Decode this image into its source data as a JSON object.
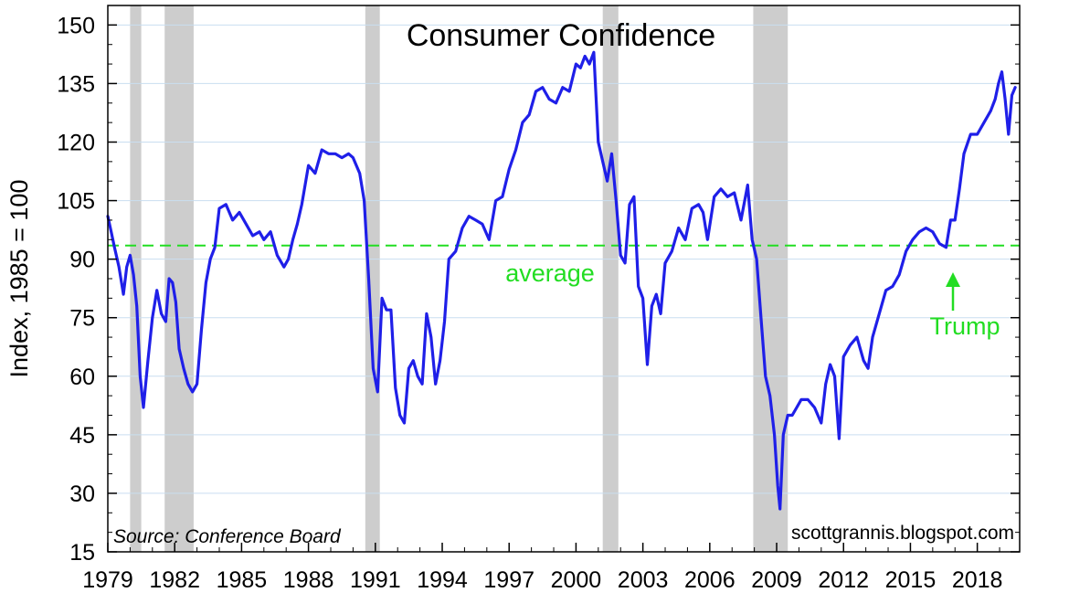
{
  "chart_data": {
    "type": "line",
    "title": "Consumer Confidence",
    "ylabel": "Index, 1985 = 100",
    "xlabel": "",
    "xlim": [
      1979,
      2019.9
    ],
    "ylim": [
      15,
      155
    ],
    "yticks": [
      15,
      30,
      45,
      60,
      75,
      90,
      105,
      120,
      135,
      150
    ],
    "xticks": [
      1979,
      1982,
      1985,
      1988,
      1991,
      1994,
      1997,
      2000,
      2003,
      2006,
      2009,
      2012,
      2015,
      2018
    ],
    "grid": true,
    "recessions": [
      {
        "start": 1980.0,
        "end": 1980.5
      },
      {
        "start": 1981.55,
        "end": 1982.85
      },
      {
        "start": 1990.55,
        "end": 1991.2
      },
      {
        "start": 2001.2,
        "end": 2001.9
      },
      {
        "start": 2007.95,
        "end": 2009.5
      }
    ],
    "average": {
      "value": 93.5,
      "label": "average"
    },
    "annotation": {
      "label": "Trump",
      "x": 2016.85,
      "arrow_y": 92
    },
    "source": "Source:  Conference Board",
    "credit": "scottgrannis.blogspot.com",
    "series": [
      {
        "name": "Consumer Confidence Index",
        "color": "#1f1fe8",
        "x": [
          1979.0,
          1979.15,
          1979.3,
          1979.5,
          1979.7,
          1979.85,
          1980.0,
          1980.15,
          1980.3,
          1980.45,
          1980.6,
          1980.8,
          1981.0,
          1981.2,
          1981.4,
          1981.6,
          1981.75,
          1981.9,
          1982.05,
          1982.2,
          1982.4,
          1982.6,
          1982.8,
          1983.0,
          1983.2,
          1983.4,
          1983.6,
          1983.8,
          1984.0,
          1984.3,
          1984.6,
          1984.9,
          1985.2,
          1985.5,
          1985.8,
          1986.0,
          1986.3,
          1986.6,
          1986.9,
          1987.1,
          1987.3,
          1987.5,
          1987.7,
          1988.0,
          1988.3,
          1988.6,
          1988.9,
          1989.2,
          1989.5,
          1989.8,
          1990.0,
          1990.3,
          1990.5,
          1990.7,
          1990.9,
          1991.1,
          1991.3,
          1991.5,
          1991.7,
          1991.9,
          1992.1,
          1992.3,
          1992.5,
          1992.7,
          1992.9,
          1993.1,
          1993.3,
          1993.5,
          1993.7,
          1993.9,
          1994.1,
          1994.3,
          1994.6,
          1994.9,
          1995.2,
          1995.5,
          1995.8,
          1996.1,
          1996.4,
          1996.7,
          1997.0,
          1997.3,
          1997.6,
          1997.9,
          1998.2,
          1998.5,
          1998.8,
          1999.1,
          1999.4,
          1999.7,
          2000.0,
          2000.2,
          2000.4,
          2000.6,
          2000.8,
          2001.0,
          2001.2,
          2001.4,
          2001.6,
          2001.8,
          2002.0,
          2002.2,
          2002.4,
          2002.6,
          2002.8,
          2003.0,
          2003.2,
          2003.4,
          2003.6,
          2003.8,
          2004.0,
          2004.3,
          2004.6,
          2004.9,
          2005.2,
          2005.5,
          2005.7,
          2005.9,
          2006.2,
          2006.5,
          2006.8,
          2007.1,
          2007.4,
          2007.7,
          2007.9,
          2008.1,
          2008.3,
          2008.5,
          2008.7,
          2008.9,
          2009.05,
          2009.15,
          2009.3,
          2009.5,
          2009.7,
          2009.9,
          2010.1,
          2010.4,
          2010.7,
          2011.0,
          2011.2,
          2011.4,
          2011.6,
          2011.8,
          2012.0,
          2012.3,
          2012.6,
          2012.9,
          2013.1,
          2013.3,
          2013.6,
          2013.9,
          2014.2,
          2014.5,
          2014.8,
          2015.1,
          2015.4,
          2015.7,
          2016.0,
          2016.3,
          2016.6,
          2016.8,
          2017.0,
          2017.2,
          2017.4,
          2017.7,
          2018.0,
          2018.3,
          2018.6,
          2018.8,
          2018.95,
          2019.1,
          2019.25,
          2019.4,
          2019.55,
          2019.7
        ],
        "values": [
          101,
          97,
          93,
          88,
          81,
          88,
          91,
          86,
          78,
          60,
          52,
          64,
          75,
          82,
          76,
          74,
          85,
          84,
          79,
          67,
          62,
          58,
          56,
          58,
          72,
          84,
          90,
          93,
          103,
          104,
          100,
          102,
          99,
          96,
          97,
          95,
          97,
          91,
          88,
          90,
          95,
          99,
          104,
          114,
          112,
          118,
          117,
          117,
          116,
          117,
          116,
          112,
          105,
          85,
          62,
          56,
          80,
          77,
          77,
          57,
          50,
          48,
          62,
          64,
          60,
          58,
          76,
          70,
          58,
          64,
          74,
          90,
          92,
          98,
          101,
          100,
          99,
          95,
          105,
          106,
          113,
          118,
          125,
          127,
          133,
          134,
          131,
          130,
          134,
          133,
          140,
          139,
          142,
          140,
          143,
          120,
          115,
          110,
          117,
          105,
          91,
          89,
          104,
          106,
          83,
          80,
          63,
          78,
          81,
          76,
          89,
          92,
          98,
          95,
          103,
          104,
          102,
          95,
          106,
          108,
          106,
          107,
          100,
          109,
          95,
          90,
          75,
          60,
          55,
          45,
          32,
          26,
          45,
          50,
          50,
          52,
          54,
          54,
          52,
          48,
          58,
          63,
          60,
          44,
          65,
          68,
          70,
          64,
          62,
          70,
          76,
          82,
          83,
          86,
          92,
          95,
          97,
          98,
          97,
          94,
          93,
          100,
          100,
          108,
          117,
          122,
          122,
          125,
          128,
          131,
          135,
          138,
          131,
          122,
          132,
          134
        ]
      }
    ]
  }
}
